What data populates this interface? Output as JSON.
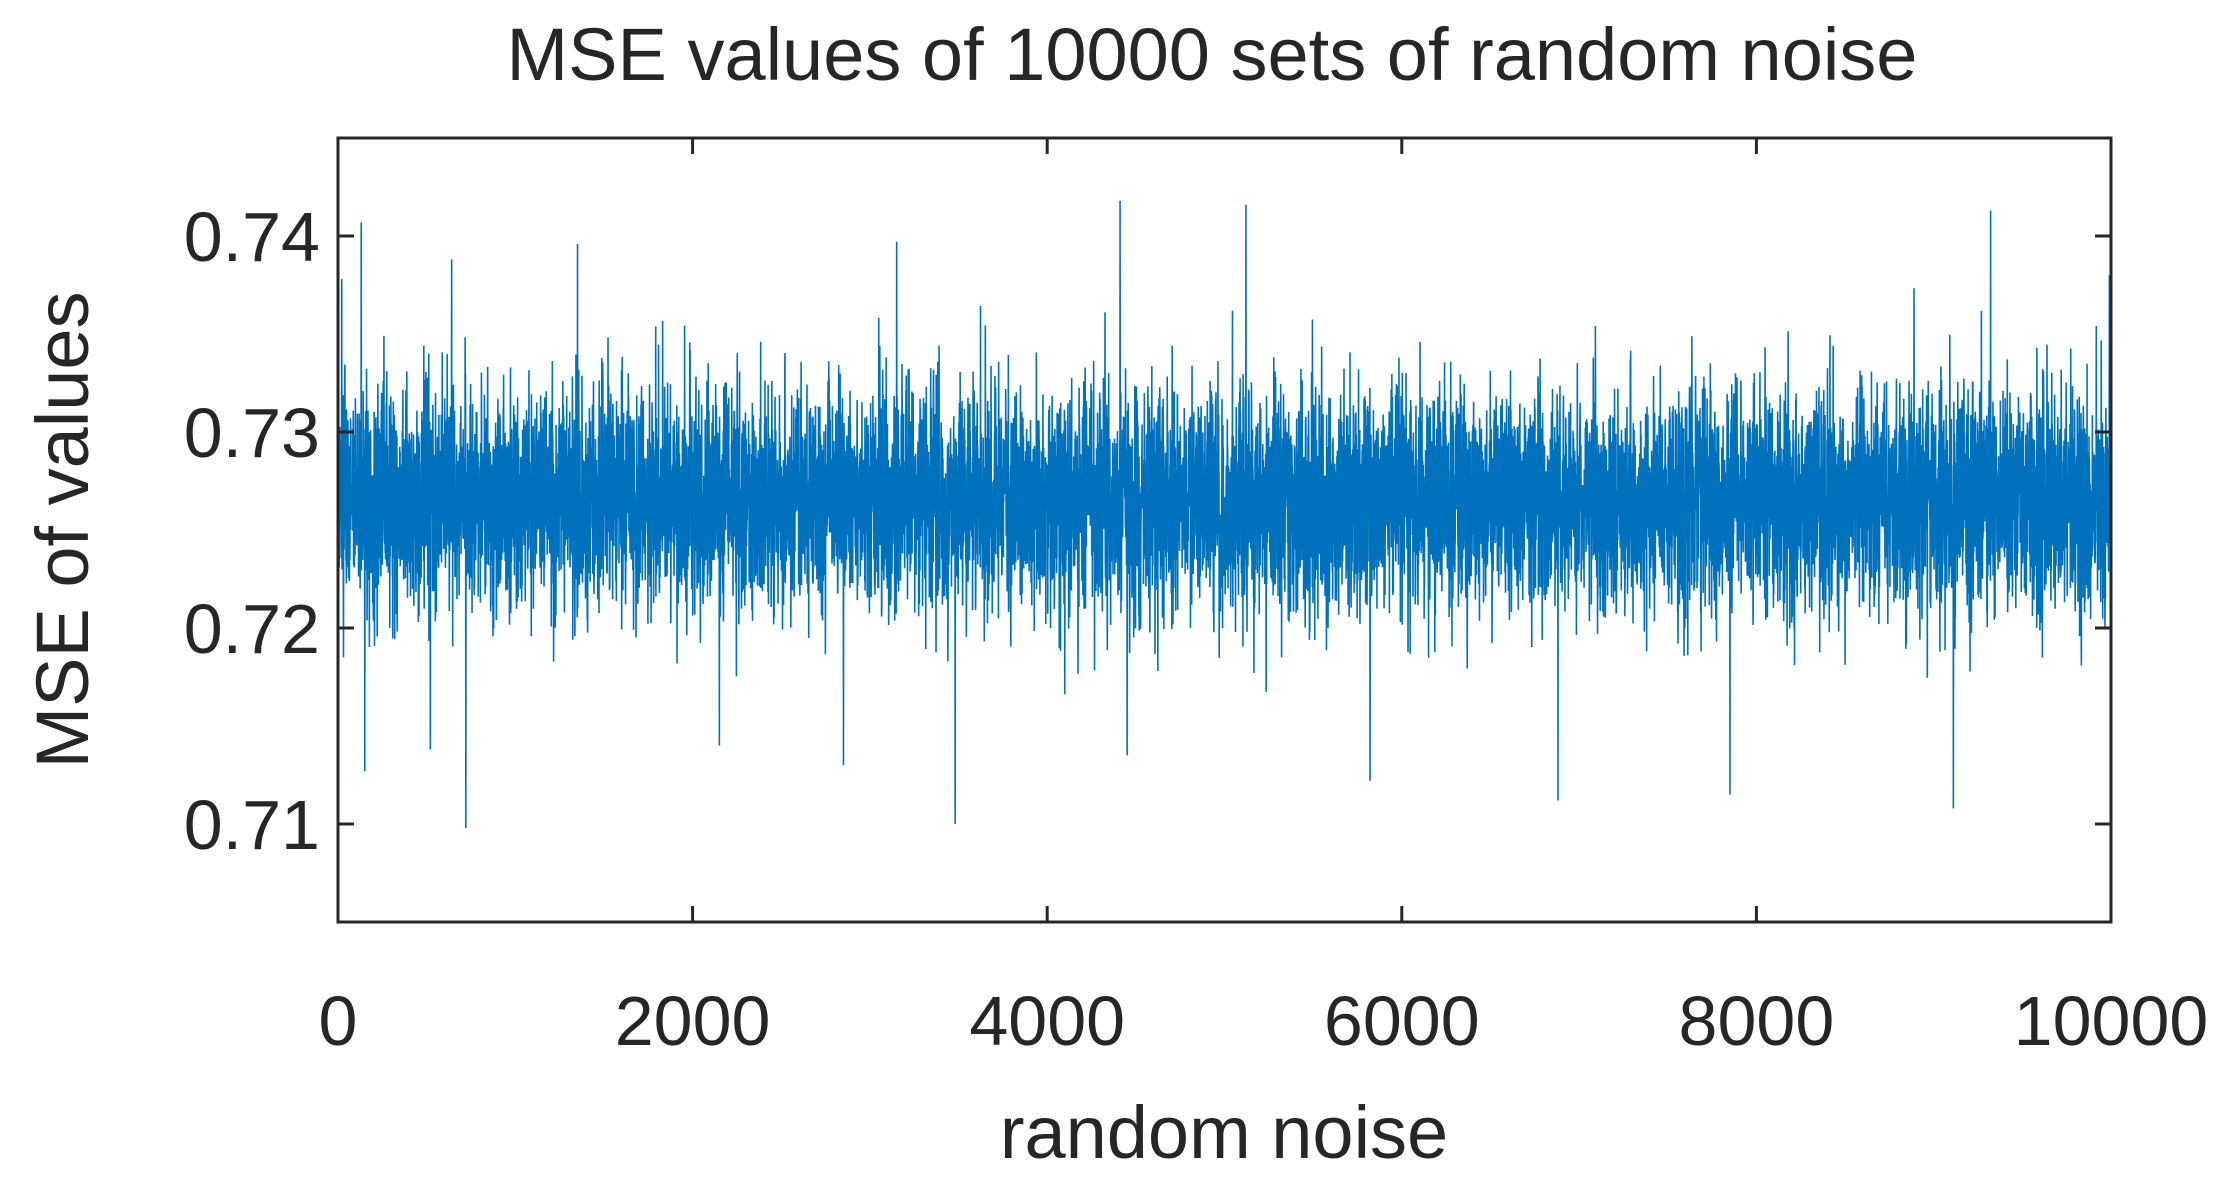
{
  "chart_data": {
    "type": "line",
    "title": "MSE values of 10000 sets of random noise",
    "xlabel": "random noise",
    "ylabel": "MSE of values",
    "xlim": [
      0,
      10000
    ],
    "ylim": [
      0.705,
      0.745
    ],
    "x_ticks": [
      0,
      2000,
      4000,
      6000,
      8000,
      10000
    ],
    "y_ticks": [
      0.71,
      0.72,
      0.73,
      0.74
    ],
    "x_tick_labels": [
      "0",
      "2000",
      "4000",
      "6000",
      "8000",
      "10000"
    ],
    "y_tick_labels": [
      "0.71",
      "0.72",
      "0.73",
      "0.74"
    ],
    "grid": false,
    "series": [
      {
        "color": "#0072BD",
        "n_points": 10000,
        "mean": 0.7265,
        "band_low": 0.7205,
        "band_high": 0.7325,
        "min": 0.7098,
        "max": 0.7418,
        "values_description_omitted": true,
        "extreme_points": [
          {
            "x": 20,
            "y": 0.7378
          },
          {
            "x": 30,
            "y": 0.7185
          },
          {
            "x": 130,
            "y": 0.7407
          },
          {
            "x": 150,
            "y": 0.7127
          },
          {
            "x": 520,
            "y": 0.7138
          },
          {
            "x": 640,
            "y": 0.7388
          },
          {
            "x": 720,
            "y": 0.7098
          },
          {
            "x": 1350,
            "y": 0.7396
          },
          {
            "x": 2150,
            "y": 0.714
          },
          {
            "x": 2850,
            "y": 0.713
          },
          {
            "x": 3150,
            "y": 0.7397
          },
          {
            "x": 3480,
            "y": 0.71
          },
          {
            "x": 4410,
            "y": 0.7418
          },
          {
            "x": 4450,
            "y": 0.7135
          },
          {
            "x": 5120,
            "y": 0.7416
          },
          {
            "x": 5150,
            "y": 0.729
          },
          {
            "x": 5820,
            "y": 0.7122
          },
          {
            "x": 6880,
            "y": 0.7112
          },
          {
            "x": 7850,
            "y": 0.7115
          },
          {
            "x": 9110,
            "y": 0.7108
          },
          {
            "x": 9320,
            "y": 0.7413
          },
          {
            "x": 9990,
            "y": 0.738
          }
        ]
      }
    ]
  }
}
